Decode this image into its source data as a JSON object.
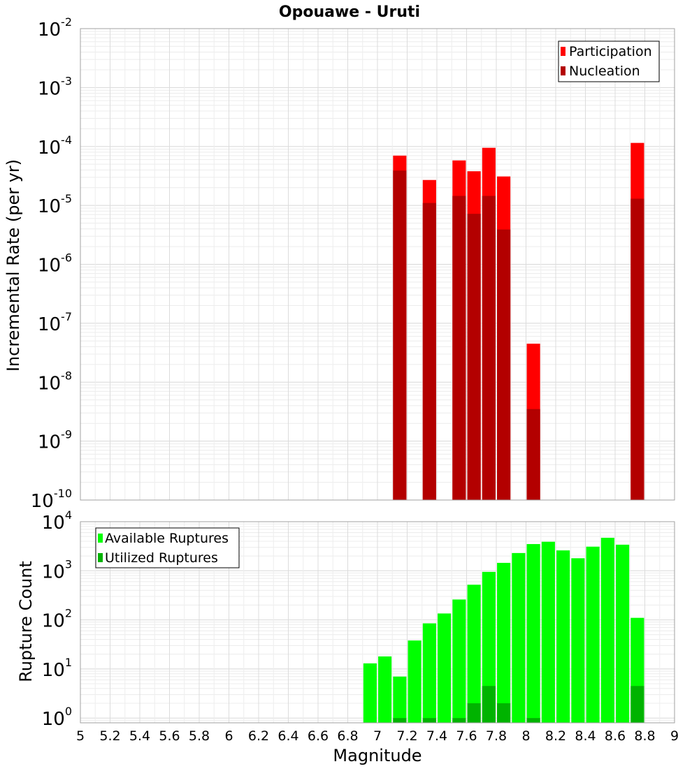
{
  "chart_data": [
    {
      "type": "bar",
      "title": "Opouawe - Uruti",
      "ylabel": "Incremental Rate (per yr)",
      "xlabel": "",
      "yscale": "log",
      "ylim": [
        1e-10,
        0.01
      ],
      "xlim": [
        5,
        9
      ],
      "ytick_exponents": [
        "-2",
        "-3",
        "-4",
        "-5",
        "-6",
        "-7",
        "-8",
        "-9",
        "-10"
      ],
      "legend_position": "top-right",
      "series": [
        {
          "name": "Participation",
          "color": "#ff0000",
          "points": [
            {
              "x": 7.15,
              "y": 7e-05
            },
            {
              "x": 7.35,
              "y": 2.7e-05
            },
            {
              "x": 7.55,
              "y": 5.8e-05
            },
            {
              "x": 7.65,
              "y": 3.8e-05
            },
            {
              "x": 7.75,
              "y": 9.5e-05
            },
            {
              "x": 7.85,
              "y": 3.1e-05
            },
            {
              "x": 8.05,
              "y": 4.5e-08
            },
            {
              "x": 8.75,
              "y": 0.000115
            }
          ]
        },
        {
          "name": "Nucleation",
          "color": "#b30000",
          "points": [
            {
              "x": 7.15,
              "y": 3.9e-05
            },
            {
              "x": 7.35,
              "y": 1.1e-05
            },
            {
              "x": 7.55,
              "y": 1.45e-05
            },
            {
              "x": 7.65,
              "y": 7.2e-06
            },
            {
              "x": 7.75,
              "y": 1.45e-05
            },
            {
              "x": 7.85,
              "y": 3.9e-06
            },
            {
              "x": 8.05,
              "y": 3.5e-09
            },
            {
              "x": 8.75,
              "y": 1.3e-05
            }
          ]
        }
      ]
    },
    {
      "type": "bar",
      "title": "",
      "ylabel": "Rupture Count",
      "xlabel": "Magnitude",
      "yscale": "log",
      "ylim": [
        0.8,
        10000
      ],
      "xlim": [
        5,
        9
      ],
      "ytick_exponents": [
        "4",
        "3",
        "2",
        "1",
        "0"
      ],
      "xticks": [
        "5",
        "5.2",
        "5.4",
        "5.6",
        "5.8",
        "6",
        "6.2",
        "6.4",
        "6.6",
        "6.8",
        "7",
        "7.2",
        "7.4",
        "7.6",
        "7.8",
        "8",
        "8.2",
        "8.4",
        "8.6",
        "8.8",
        "9"
      ],
      "legend_position": "top-left",
      "series": [
        {
          "name": "Available Ruptures",
          "color": "#00ff00",
          "points": [
            {
              "x": 6.95,
              "y": 13
            },
            {
              "x": 7.05,
              "y": 18
            },
            {
              "x": 7.15,
              "y": 7
            },
            {
              "x": 7.25,
              "y": 38
            },
            {
              "x": 7.35,
              "y": 85
            },
            {
              "x": 7.45,
              "y": 135
            },
            {
              "x": 7.55,
              "y": 260
            },
            {
              "x": 7.65,
              "y": 520
            },
            {
              "x": 7.75,
              "y": 950
            },
            {
              "x": 7.85,
              "y": 1450
            },
            {
              "x": 7.95,
              "y": 2300
            },
            {
              "x": 8.05,
              "y": 3500
            },
            {
              "x": 8.15,
              "y": 3900
            },
            {
              "x": 8.25,
              "y": 2600
            },
            {
              "x": 8.35,
              "y": 1800
            },
            {
              "x": 8.45,
              "y": 3100
            },
            {
              "x": 8.55,
              "y": 4700
            },
            {
              "x": 8.65,
              "y": 3400
            },
            {
              "x": 8.75,
              "y": 110
            }
          ]
        },
        {
          "name": "Utilized Ruptures",
          "color": "#00b300",
          "points": [
            {
              "x": 7.15,
              "y": 1
            },
            {
              "x": 7.35,
              "y": 1
            },
            {
              "x": 7.55,
              "y": 1
            },
            {
              "x": 7.65,
              "y": 2
            },
            {
              "x": 7.75,
              "y": 4.5
            },
            {
              "x": 7.85,
              "y": 2
            },
            {
              "x": 8.05,
              "y": 1
            },
            {
              "x": 8.75,
              "y": 4.5
            }
          ]
        }
      ]
    }
  ]
}
